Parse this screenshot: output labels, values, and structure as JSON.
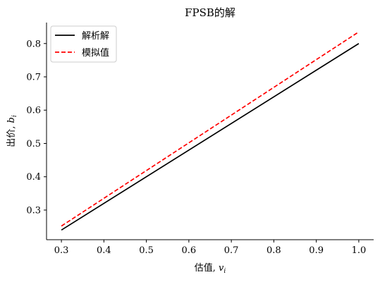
{
  "chart_data": {
    "type": "line",
    "title": "FPSB的解",
    "xlabel": "估值, ",
    "xlabel_var": "v",
    "xlabel_sub": "i",
    "ylabel": "出价, ",
    "ylabel_var": "b",
    "ylabel_sub": "i",
    "xlim": [
      0.265,
      1.035
    ],
    "ylim": [
      0.211,
      0.863
    ],
    "xticks": [
      "0.3",
      "0.4",
      "0.5",
      "0.6",
      "0.7",
      "0.8",
      "0.9",
      "1.0"
    ],
    "yticks": [
      "0.3",
      "0.4",
      "0.5",
      "0.6",
      "0.7",
      "0.8"
    ],
    "grid": false,
    "legend_position": "top-left",
    "series": [
      {
        "name": "解析解",
        "color": "#000000",
        "style": "solid",
        "x": [
          0.3,
          1.0
        ],
        "y": [
          0.24,
          0.8
        ]
      },
      {
        "name": "模拟值",
        "color": "#ff0000",
        "style": "dashed",
        "x": [
          0.3,
          1.0
        ],
        "y": [
          0.252,
          0.835
        ]
      }
    ]
  }
}
